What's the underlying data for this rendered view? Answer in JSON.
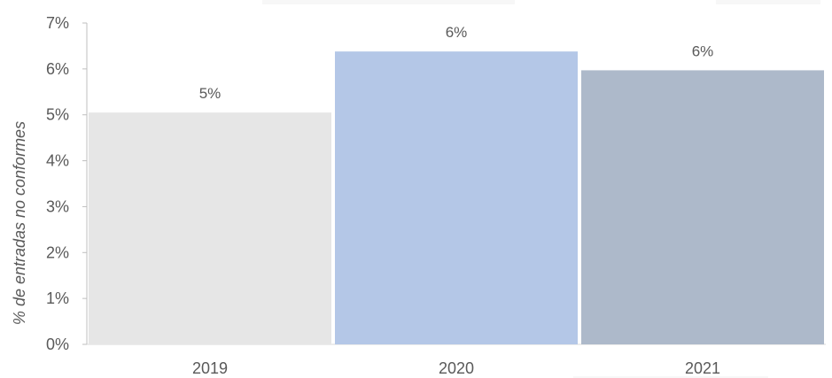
{
  "chart_data": {
    "type": "bar",
    "categories": [
      "2019",
      "2020",
      "2021"
    ],
    "values": [
      5.05,
      6.38,
      5.97
    ],
    "data_labels": [
      "5%",
      "6%",
      "6%"
    ],
    "colors": [
      "#e6e6e6",
      "#b4c7e7",
      "#adb9ca"
    ],
    "ylabel": "% de entradas no conformes",
    "ylim": [
      0,
      7
    ],
    "yticks": [
      0,
      1,
      2,
      3,
      4,
      5,
      6,
      7
    ],
    "ytick_labels": [
      "0%",
      "1%",
      "2%",
      "3%",
      "4%",
      "5%",
      "6%",
      "7%"
    ],
    "grid": false,
    "legend": "none"
  }
}
